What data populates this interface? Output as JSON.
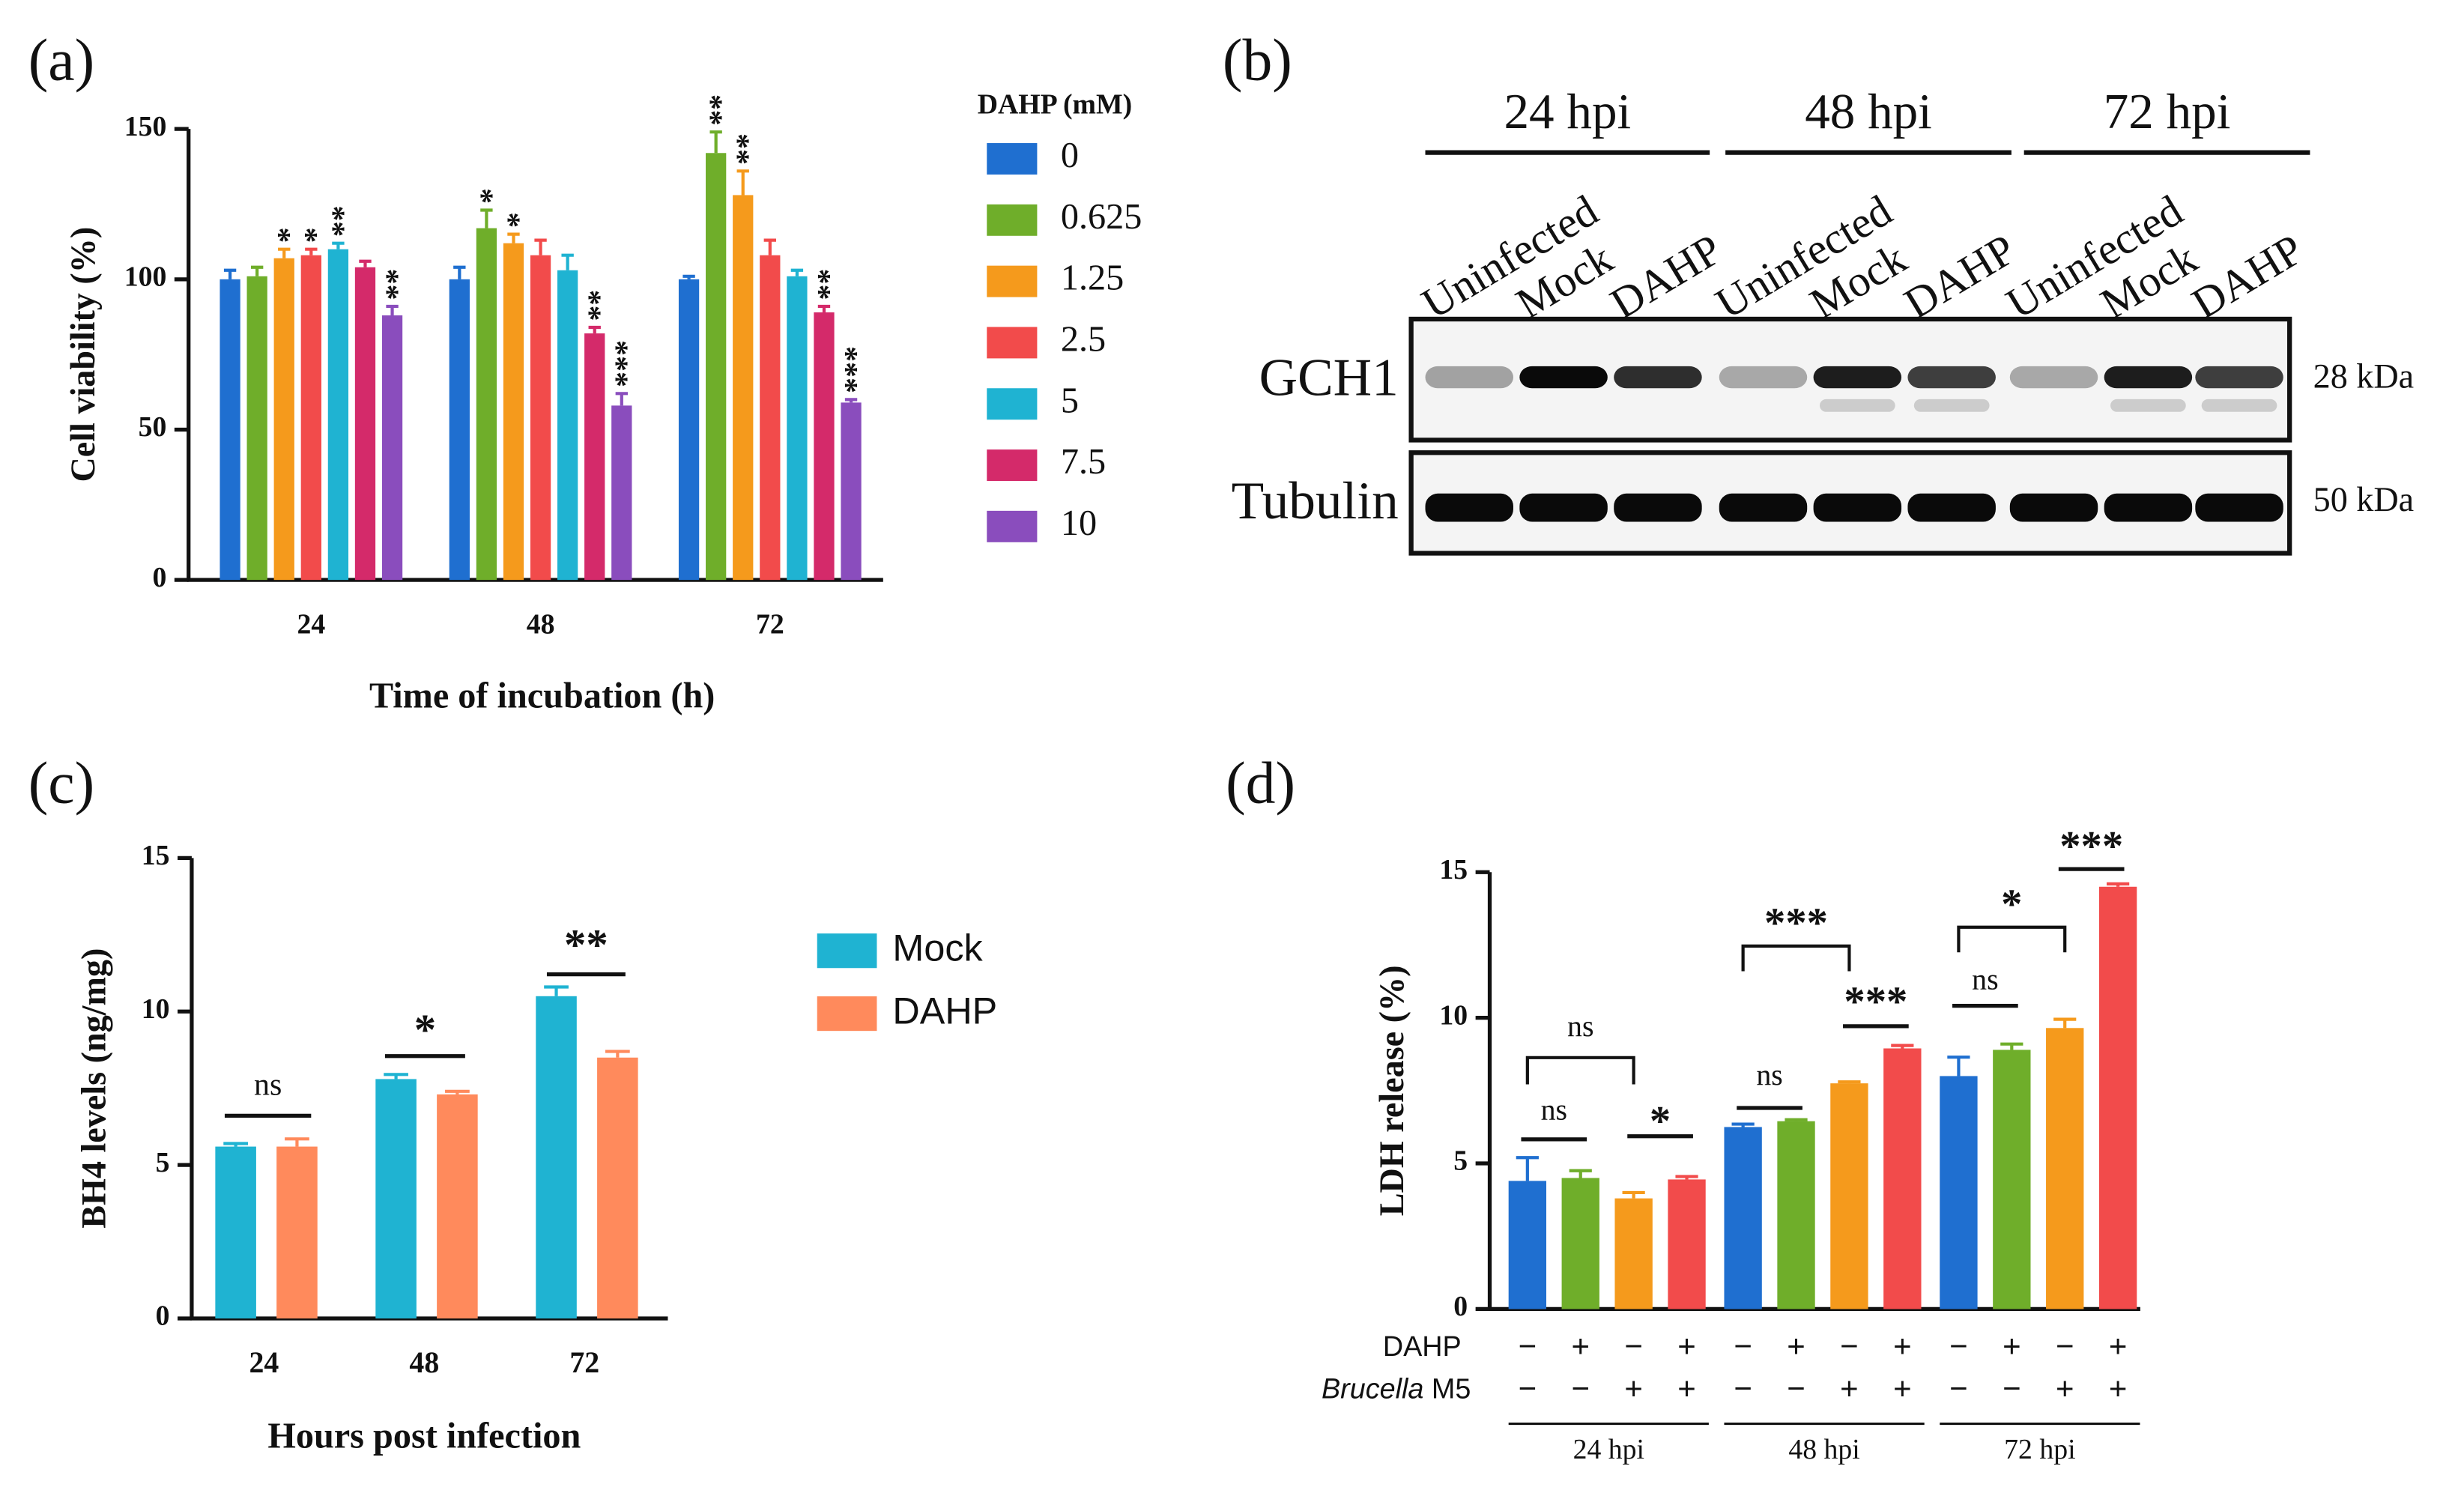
{
  "chart_data": [
    {
      "type": "bar",
      "panel_label": "(a)",
      "ylabel": "Cell viability (%)",
      "xlabel": "Time of incubation (h)",
      "legend_title": "DAHP (mM)",
      "categories": [
        "24",
        "48",
        "72"
      ],
      "ylim": [
        0,
        150
      ],
      "yticks": [
        0,
        50,
        100,
        150
      ],
      "series": [
        {
          "name": "0",
          "color": "#1f6fd0",
          "values": [
            100,
            100,
            100
          ],
          "errors": [
            3,
            4,
            1
          ],
          "labels": [
            null,
            null,
            null
          ]
        },
        {
          "name": "0.625",
          "color": "#6fae2a",
          "values": [
            101,
            117,
            142
          ],
          "errors": [
            3,
            6,
            7
          ],
          "labels": [
            null,
            "*",
            "**"
          ]
        },
        {
          "name": "1.25",
          "color": "#f59a1c",
          "values": [
            107,
            112,
            128
          ],
          "errors": [
            3,
            3,
            8
          ],
          "labels": [
            "*",
            "*",
            "**"
          ]
        },
        {
          "name": "2.5",
          "color": "#f24b4b",
          "values": [
            108,
            108,
            108
          ],
          "errors": [
            2,
            5,
            5
          ],
          "labels": [
            "*",
            null,
            null
          ]
        },
        {
          "name": "5",
          "color": "#1fb3d2",
          "values": [
            110,
            103,
            101
          ],
          "errors": [
            2,
            5,
            2
          ],
          "labels": [
            "**",
            null,
            null
          ]
        },
        {
          "name": "7.5",
          "color": "#d42a6a",
          "values": [
            104,
            82,
            89
          ],
          "errors": [
            2,
            2,
            2
          ],
          "labels": [
            null,
            "**",
            "**"
          ]
        },
        {
          "name": "10",
          "color": "#8a4dbd",
          "values": [
            88,
            58,
            59
          ],
          "errors": [
            3,
            4,
            1
          ],
          "labels": [
            "**",
            "***",
            "***"
          ]
        }
      ]
    },
    {
      "type": "bar",
      "panel_label": "(c)",
      "ylabel": "BH4 levels (ng/mg)",
      "xlabel": "Hours post infection",
      "categories": [
        "24",
        "48",
        "72"
      ],
      "ylim": [
        0,
        15
      ],
      "yticks": [
        0,
        5,
        10,
        15
      ],
      "series": [
        {
          "name": "Mock",
          "color": "#1fb3d2",
          "values": [
            5.6,
            7.8,
            10.5
          ],
          "errors": [
            0.1,
            0.15,
            0.3
          ]
        },
        {
          "name": "DAHP",
          "color": "#ff8a5c",
          "values": [
            5.6,
            7.3,
            8.5
          ],
          "errors": [
            0.25,
            0.1,
            0.2
          ]
        }
      ],
      "comparisons": [
        "ns",
        "*",
        "**"
      ]
    },
    {
      "type": "bar",
      "panel_label": "(d)",
      "ylabel": "LDH release (%)",
      "ylim": [
        0,
        15
      ],
      "yticks": [
        0,
        5,
        10,
        15
      ],
      "values": [
        4.4,
        4.5,
        3.8,
        4.45,
        6.25,
        6.45,
        7.75,
        8.95,
        8.0,
        8.9,
        9.65,
        14.5
      ],
      "errors": [
        0.8,
        0.25,
        0.2,
        0.1,
        0.1,
        0.05,
        0.05,
        0.1,
        0.65,
        0.2,
        0.3,
        0.1
      ],
      "colors": [
        "#1f6fd0",
        "#6fae2a",
        "#f59a1c",
        "#f24b4b",
        "#1f6fd0",
        "#6fae2a",
        "#f59a1c",
        "#f24b4b",
        "#1f6fd0",
        "#6fae2a",
        "#f59a1c",
        "#f24b4b"
      ],
      "comparisons": [
        "ns",
        "ns",
        "*",
        "ns",
        "***",
        "***",
        "ns",
        "*",
        "***"
      ],
      "conditions": [
        {
          "label": "DAHP",
          "signs": [
            "−",
            "+",
            "−",
            "+",
            "−",
            "+",
            "−",
            "+",
            "−",
            "+",
            "−",
            "+"
          ]
        },
        {
          "label": "Brucella",
          "label_suffix": "M5",
          "signs": [
            "−",
            "−",
            "+",
            "+",
            "−",
            "−",
            "+",
            "+",
            "−",
            "−",
            "+",
            "+"
          ]
        }
      ],
      "groups": [
        "24 hpi",
        "48 hpi",
        "72 hpi"
      ]
    }
  ],
  "blot": {
    "panel_label": "(b)",
    "timepoints": [
      "24 hpi",
      "48 hpi",
      "72 hpi"
    ],
    "lanes": [
      "Uninfected",
      "Mock",
      "DAHP",
      "Uninfected",
      "Mock",
      "DAHP",
      "Uninfected",
      "Mock",
      "DAHP"
    ],
    "rows": [
      {
        "label": "GCH1",
        "size": "28 kDa"
      },
      {
        "label": "Tubulin",
        "size": "50 kDa"
      }
    ]
  }
}
